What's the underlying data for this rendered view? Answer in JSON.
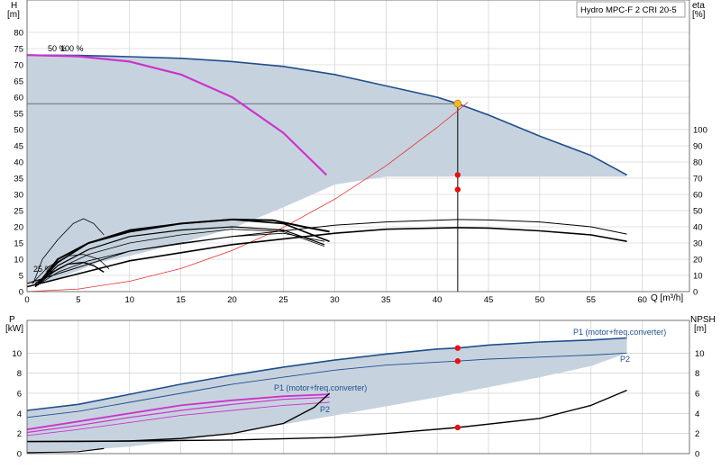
{
  "title_box": "Hydro MPC-F 2 CRI 20-5",
  "chart_data": [
    {
      "type": "line",
      "panel": "head-efficiency",
      "x_axis": {
        "label": "Q [m³/h]",
        "range": [
          0,
          60
        ],
        "ticks": [
          0,
          5,
          10,
          15,
          20,
          25,
          30,
          35,
          40,
          45,
          50,
          55,
          60
        ]
      },
      "y_axis_left": {
        "label": "H",
        "unit": "[m]",
        "range": [
          0,
          80
        ],
        "ticks": [
          0,
          5,
          10,
          15,
          20,
          25,
          30,
          35,
          40,
          45,
          50,
          55,
          60,
          65,
          70,
          75,
          80
        ]
      },
      "y_axis_right": {
        "label": "eta",
        "unit": "[%]",
        "range": [
          0,
          100
        ],
        "ticks": [
          0,
          10,
          20,
          30,
          40,
          50,
          60,
          70,
          80,
          90,
          100
        ]
      },
      "annotations": {
        "speed_top": "50 %",
        "speed_top_b": "100 %",
        "speed_bottom": "25 %"
      },
      "duty_point": {
        "q": 42,
        "h": 58,
        "eta_a": 72,
        "eta_b": 63
      },
      "envelope_h": [
        [
          0,
          73
        ],
        [
          5,
          72.9
        ],
        [
          10,
          72.5
        ],
        [
          15,
          72
        ],
        [
          20,
          71
        ],
        [
          25,
          69.5
        ],
        [
          30,
          67
        ],
        [
          35,
          63.5
        ],
        [
          40,
          60
        ],
        [
          42,
          58
        ],
        [
          45,
          54.5
        ],
        [
          50,
          48
        ],
        [
          55,
          42
        ],
        [
          58.5,
          36
        ],
        [
          58.5,
          35.5
        ],
        [
          35,
          35.5
        ],
        [
          30,
          33
        ],
        [
          25,
          26
        ],
        [
          20,
          19.5
        ],
        [
          15,
          15
        ],
        [
          10,
          11
        ],
        [
          7,
          9
        ],
        [
          5,
          6.5
        ],
        [
          3,
          4
        ],
        [
          0,
          2
        ]
      ],
      "series": [
        {
          "name": "",
          "color": "#1f4e8c",
          "width": 1.6,
          "axis": "left",
          "points": [
            [
              0,
              73
            ],
            [
              5,
              72.9
            ],
            [
              10,
              72.5
            ],
            [
              15,
              72
            ],
            [
              20,
              71
            ],
            [
              25,
              69.5
            ],
            [
              30,
              67
            ],
            [
              35,
              63.5
            ],
            [
              40,
              60
            ],
            [
              42,
              58
            ],
            [
              45,
              54.5
            ],
            [
              50,
              48
            ],
            [
              55,
              42
            ],
            [
              58.5,
              36
            ]
          ]
        },
        {
          "name": "",
          "color": "#cc33cc",
          "width": 2.2,
          "axis": "left",
          "points": [
            [
              0,
              73
            ],
            [
              5,
              72.6
            ],
            [
              10,
              71
            ],
            [
              15,
              67
            ],
            [
              20,
              60
            ],
            [
              25,
              49
            ],
            [
              29.2,
              36
            ]
          ]
        },
        {
          "name": "",
          "color": "#e83030",
          "width": 0.8,
          "axis": "left",
          "points": [
            [
              0,
              0
            ],
            [
              5,
              0.8
            ],
            [
              10,
              3.2
            ],
            [
              15,
              7.1
            ],
            [
              20,
              12.7
            ],
            [
              25,
              19.8
            ],
            [
              30,
              28.5
            ],
            [
              35,
              38.8
            ],
            [
              40,
              50.7
            ],
            [
              42,
              55.8
            ],
            [
              43,
              58.5
            ]
          ]
        },
        {
          "name": "",
          "color": "#000000",
          "width": 0.8,
          "axis": "right",
          "points": [
            [
              0.6,
              5
            ],
            [
              1.5,
              20
            ],
            [
              3,
              32
            ],
            [
              4.5,
              42
            ],
            [
              5.5,
              45
            ],
            [
              6.5,
              42
            ],
            [
              7.5,
              35
            ]
          ]
        },
        {
          "name": "",
          "color": "#000000",
          "width": 1.4,
          "axis": "right",
          "points": [
            [
              0.8,
              5
            ],
            [
              2.5,
              12
            ],
            [
              4,
              17
            ],
            [
              5.5,
              18
            ],
            [
              6.5,
              16
            ],
            [
              7.5,
              12
            ]
          ]
        },
        {
          "name": "",
          "color": "#000000",
          "width": 0.8,
          "axis": "right",
          "points": [
            [
              0.5,
              5
            ],
            [
              2,
              15
            ],
            [
              4,
              22
            ],
            [
              5.5,
              23
            ],
            [
              7,
              20
            ],
            [
              8,
              14
            ]
          ]
        },
        {
          "name": "",
          "color": "#000000",
          "width": 1.6,
          "axis": "right",
          "points": [
            [
              0.8,
              3
            ],
            [
              3,
              18
            ],
            [
              6,
              30
            ],
            [
              10,
              38
            ],
            [
              15,
              42
            ],
            [
              20,
              44.5
            ],
            [
              25,
              42
            ],
            [
              29.5,
              31
            ]
          ]
        },
        {
          "name": "",
          "color": "#000000",
          "width": 1.2,
          "axis": "right",
          "points": [
            [
              0.8,
              3
            ],
            [
              3,
              16
            ],
            [
              6,
              26
            ],
            [
              10,
              34
            ],
            [
              15,
              38
            ],
            [
              20,
              40
            ],
            [
              25,
              38
            ],
            [
              29,
              29
            ]
          ]
        },
        {
          "name": "",
          "color": "#000000",
          "width": 0.8,
          "axis": "right",
          "points": [
            [
              0.8,
              3
            ],
            [
              3,
              14
            ],
            [
              6,
              23
            ],
            [
              10,
              30
            ],
            [
              15,
              35
            ],
            [
              20,
              38.5
            ],
            [
              25,
              37
            ],
            [
              29,
              28
            ]
          ]
        },
        {
          "name": "",
          "color": "#000000",
          "width": 0.8,
          "axis": "right",
          "points": [
            [
              0.8,
              3
            ],
            [
              3,
              12
            ],
            [
              6,
              19
            ],
            [
              10,
              25
            ],
            [
              15,
              30
            ],
            [
              20,
              34
            ],
            [
              25,
              36
            ],
            [
              29,
              31
            ]
          ]
        },
        {
          "name": "",
          "color": "#000000",
          "width": 2.0,
          "axis": "right",
          "points": [
            [
              1,
              4
            ],
            [
              3,
              20
            ],
            [
              6,
              30
            ],
            [
              10,
              37
            ],
            [
              15,
              42
            ],
            [
              20,
              44.5
            ],
            [
              24,
              44
            ],
            [
              27,
              40
            ],
            [
              29.5,
              37
            ]
          ]
        },
        {
          "name": "",
          "color": "#000000",
          "width": 1.0,
          "axis": "right",
          "points": [
            [
              0,
              5
            ],
            [
              10,
              25
            ],
            [
              20,
              34
            ],
            [
              30,
              41
            ],
            [
              35,
              43
            ],
            [
              42,
              44.5
            ],
            [
              45,
              44.2
            ],
            [
              50,
              43
            ],
            [
              55,
              40
            ],
            [
              58.5,
              35.5
            ]
          ]
        },
        {
          "name": "",
          "color": "#000000",
          "width": 1.6,
          "axis": "right",
          "points": [
            [
              0,
              3
            ],
            [
              10,
              19
            ],
            [
              20,
              29
            ],
            [
              30,
              36
            ],
            [
              35,
              38.5
            ],
            [
              42,
              39.5
            ],
            [
              45,
              39.2
            ],
            [
              50,
              37.5
            ],
            [
              55,
              35
            ],
            [
              58.5,
              31
            ]
          ]
        }
      ]
    },
    {
      "type": "line",
      "panel": "power-npsh",
      "x_axis": {
        "range": [
          0,
          60
        ]
      },
      "y_axis_left": {
        "label": "P",
        "unit": "[kW]",
        "range": [
          0,
          12
        ],
        "ticks": [
          0,
          2,
          4,
          6,
          8,
          10
        ]
      },
      "y_axis_right": {
        "label": "NPSH",
        "unit": "[m]",
        "range": [
          0,
          12
        ],
        "ticks": [
          0,
          2,
          4,
          6,
          8,
          10
        ]
      },
      "labels": {
        "p1": "P1 (motor+freq.converter)",
        "p2": "P2",
        "p1_small": "P1 (motor+freq.converter)",
        "p2_small": "P2"
      },
      "duty_point": {
        "q": 42,
        "p1": 10.5,
        "p2": 9.2,
        "npsh": 2.6
      },
      "envelope": [
        [
          0,
          4.3
        ],
        [
          5,
          4.9
        ],
        [
          10,
          5.9
        ],
        [
          15,
          6.9
        ],
        [
          20,
          7.8
        ],
        [
          25,
          8.6
        ],
        [
          30,
          9.3
        ],
        [
          35,
          9.9
        ],
        [
          40,
          10.4
        ],
        [
          45,
          10.8
        ],
        [
          50,
          11.1
        ],
        [
          55,
          11.3
        ],
        [
          58.5,
          11.5
        ],
        [
          58.5,
          10
        ],
        [
          55,
          8.7
        ],
        [
          50,
          7.6
        ],
        [
          45,
          6.6
        ],
        [
          40,
          5.6
        ],
        [
          35,
          4.7
        ],
        [
          30,
          3.8
        ],
        [
          25,
          2.9
        ],
        [
          20,
          2.1
        ],
        [
          15,
          1.3
        ],
        [
          10,
          0.7
        ],
        [
          5,
          0.3
        ],
        [
          0,
          0.2
        ]
      ],
      "series": [
        {
          "name": "P1 (motor+freq.converter)",
          "color": "#1f4e8c",
          "width": 1.6,
          "points": [
            [
              0,
              4.3
            ],
            [
              5,
              4.9
            ],
            [
              10,
              5.9
            ],
            [
              15,
              6.9
            ],
            [
              20,
              7.8
            ],
            [
              25,
              8.6
            ],
            [
              30,
              9.3
            ],
            [
              35,
              9.9
            ],
            [
              40,
              10.4
            ],
            [
              42,
              10.5
            ],
            [
              45,
              10.8
            ],
            [
              50,
              11.1
            ],
            [
              55,
              11.3
            ],
            [
              58.5,
              11.5
            ]
          ]
        },
        {
          "name": "P2",
          "color": "#1f4e8c",
          "width": 0.9,
          "points": [
            [
              0,
              3.6
            ],
            [
              5,
              4.2
            ],
            [
              10,
              5.1
            ],
            [
              15,
              6
            ],
            [
              20,
              6.9
            ],
            [
              25,
              7.6
            ],
            [
              30,
              8.3
            ],
            [
              35,
              8.8
            ],
            [
              40,
              9.1
            ],
            [
              42,
              9.2
            ],
            [
              45,
              9.4
            ],
            [
              50,
              9.6
            ],
            [
              55,
              9.8
            ],
            [
              58.5,
              10
            ]
          ]
        },
        {
          "name": "",
          "color": "#cc33cc",
          "width": 1.8,
          "points": [
            [
              0,
              2.4
            ],
            [
              5,
              3.2
            ],
            [
              10,
              4
            ],
            [
              15,
              4.8
            ],
            [
              20,
              5.3
            ],
            [
              25,
              5.7
            ],
            [
              29.5,
              5.9
            ]
          ]
        },
        {
          "name": "",
          "color": "#cc33cc",
          "width": 1.2,
          "points": [
            [
              0,
              2.1
            ],
            [
              5,
              2.8
            ],
            [
              10,
              3.6
            ],
            [
              15,
              4.3
            ],
            [
              20,
              4.9
            ],
            [
              25,
              5.4
            ],
            [
              29.5,
              5.6
            ]
          ]
        },
        {
          "name": "",
          "color": "#cc33cc",
          "width": 0.9,
          "points": [
            [
              0,
              1.8
            ],
            [
              5,
              2.4
            ],
            [
              10,
              3.1
            ],
            [
              15,
              3.8
            ],
            [
              20,
              4.3
            ],
            [
              25,
              4.8
            ],
            [
              29.5,
              5.1
            ]
          ]
        },
        {
          "name": "",
          "color": "#000000",
          "width": 1.4,
          "points": [
            [
              0,
              1.2
            ],
            [
              5,
              1.2
            ],
            [
              10,
              1.25
            ],
            [
              15,
              1.5
            ],
            [
              20,
              2
            ],
            [
              25,
              3
            ],
            [
              28,
              4.6
            ],
            [
              29.5,
              6
            ]
          ]
        },
        {
          "name": "",
          "color": "#000000",
          "width": 1.4,
          "points": [
            [
              0,
              1.2
            ],
            [
              10,
              1.25
            ],
            [
              20,
              1.35
            ],
            [
              30,
              1.6
            ],
            [
              35,
              2
            ],
            [
              42,
              2.6
            ],
            [
              50,
              3.5
            ],
            [
              55,
              4.8
            ],
            [
              58.5,
              6.3
            ]
          ]
        },
        {
          "name": "",
          "color": "#000000",
          "width": 1.2,
          "points": [
            [
              0,
              0.1
            ],
            [
              3,
              0.15
            ],
            [
              5,
              0.2
            ],
            [
              7.5,
              0.5
            ]
          ]
        }
      ]
    }
  ]
}
